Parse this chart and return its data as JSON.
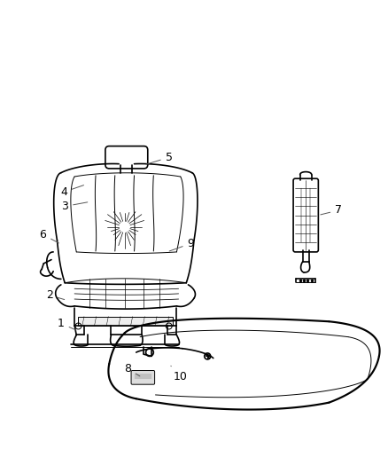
{
  "bg_color": "#ffffff",
  "line_color": "#000000",
  "label_color": "#000000",
  "fig_width": 4.38,
  "fig_height": 5.33,
  "dpi": 100,
  "label_fontsize": 9,
  "leader_line_color": "#555555"
}
